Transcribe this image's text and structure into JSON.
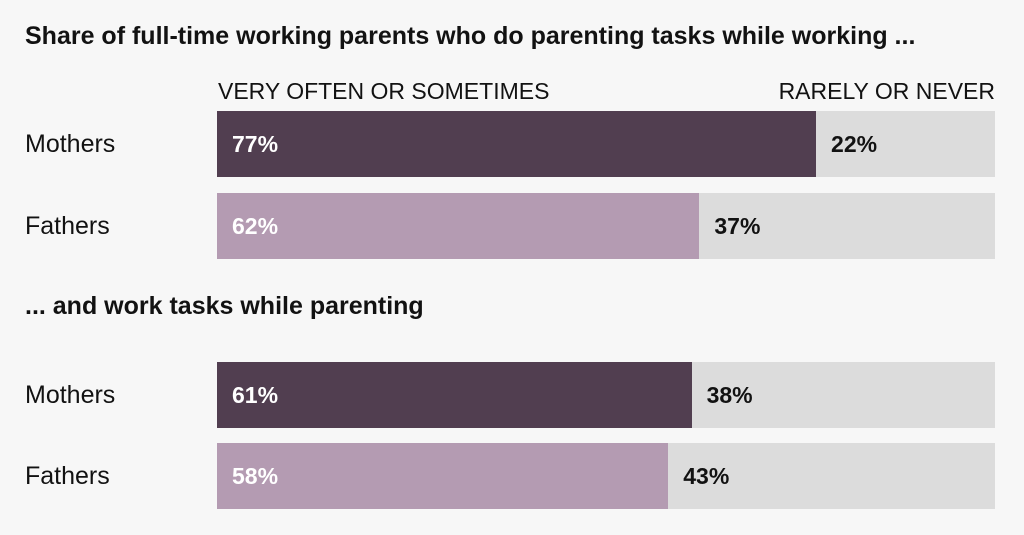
{
  "title": "Share of full-time working parents who do parenting tasks while working ...",
  "subtitle": "... and work tasks while parenting",
  "column_headers": {
    "left": "VERY OFTEN OR SOMETIMES",
    "right": "RARELY OR NEVER"
  },
  "colors": {
    "mothers": "#513e50",
    "fathers": "#b49bb2",
    "remainder": "#dcdcdc"
  },
  "chart_data": [
    {
      "type": "bar",
      "stacked": true,
      "orientation": "horizontal",
      "title": "Share of full-time working parents who do parenting tasks while working ...",
      "categories": [
        "Mothers",
        "Fathers"
      ],
      "series": [
        {
          "name": "VERY OFTEN OR SOMETIMES",
          "values": [
            77,
            62
          ]
        },
        {
          "name": "RARELY OR NEVER",
          "values": [
            22,
            37
          ]
        }
      ],
      "labels": {
        "often": [
          "77%",
          "62%"
        ],
        "rarely": [
          "22%",
          "37%"
        ]
      },
      "xlim": [
        0,
        100
      ]
    },
    {
      "type": "bar",
      "stacked": true,
      "orientation": "horizontal",
      "title": "... and work tasks while parenting",
      "categories": [
        "Mothers",
        "Fathers"
      ],
      "series": [
        {
          "name": "VERY OFTEN OR SOMETIMES",
          "values": [
            61,
            58
          ]
        },
        {
          "name": "RARELY OR NEVER",
          "values": [
            38,
            43
          ]
        }
      ],
      "labels": {
        "often": [
          "61%",
          "58%"
        ],
        "rarely": [
          "38%",
          "43%"
        ]
      },
      "xlim": [
        0,
        100
      ]
    }
  ]
}
